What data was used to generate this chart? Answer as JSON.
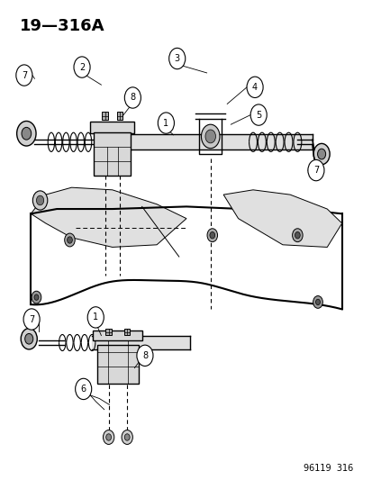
{
  "title": "19—316A",
  "footer": "96119  316",
  "bg_color": "#ffffff",
  "line_color": "#000000",
  "title_fontsize": 13,
  "footer_fontsize": 7,
  "callout_fontsize": 8,
  "fig_width": 4.14,
  "fig_height": 5.33,
  "dpi": 100
}
